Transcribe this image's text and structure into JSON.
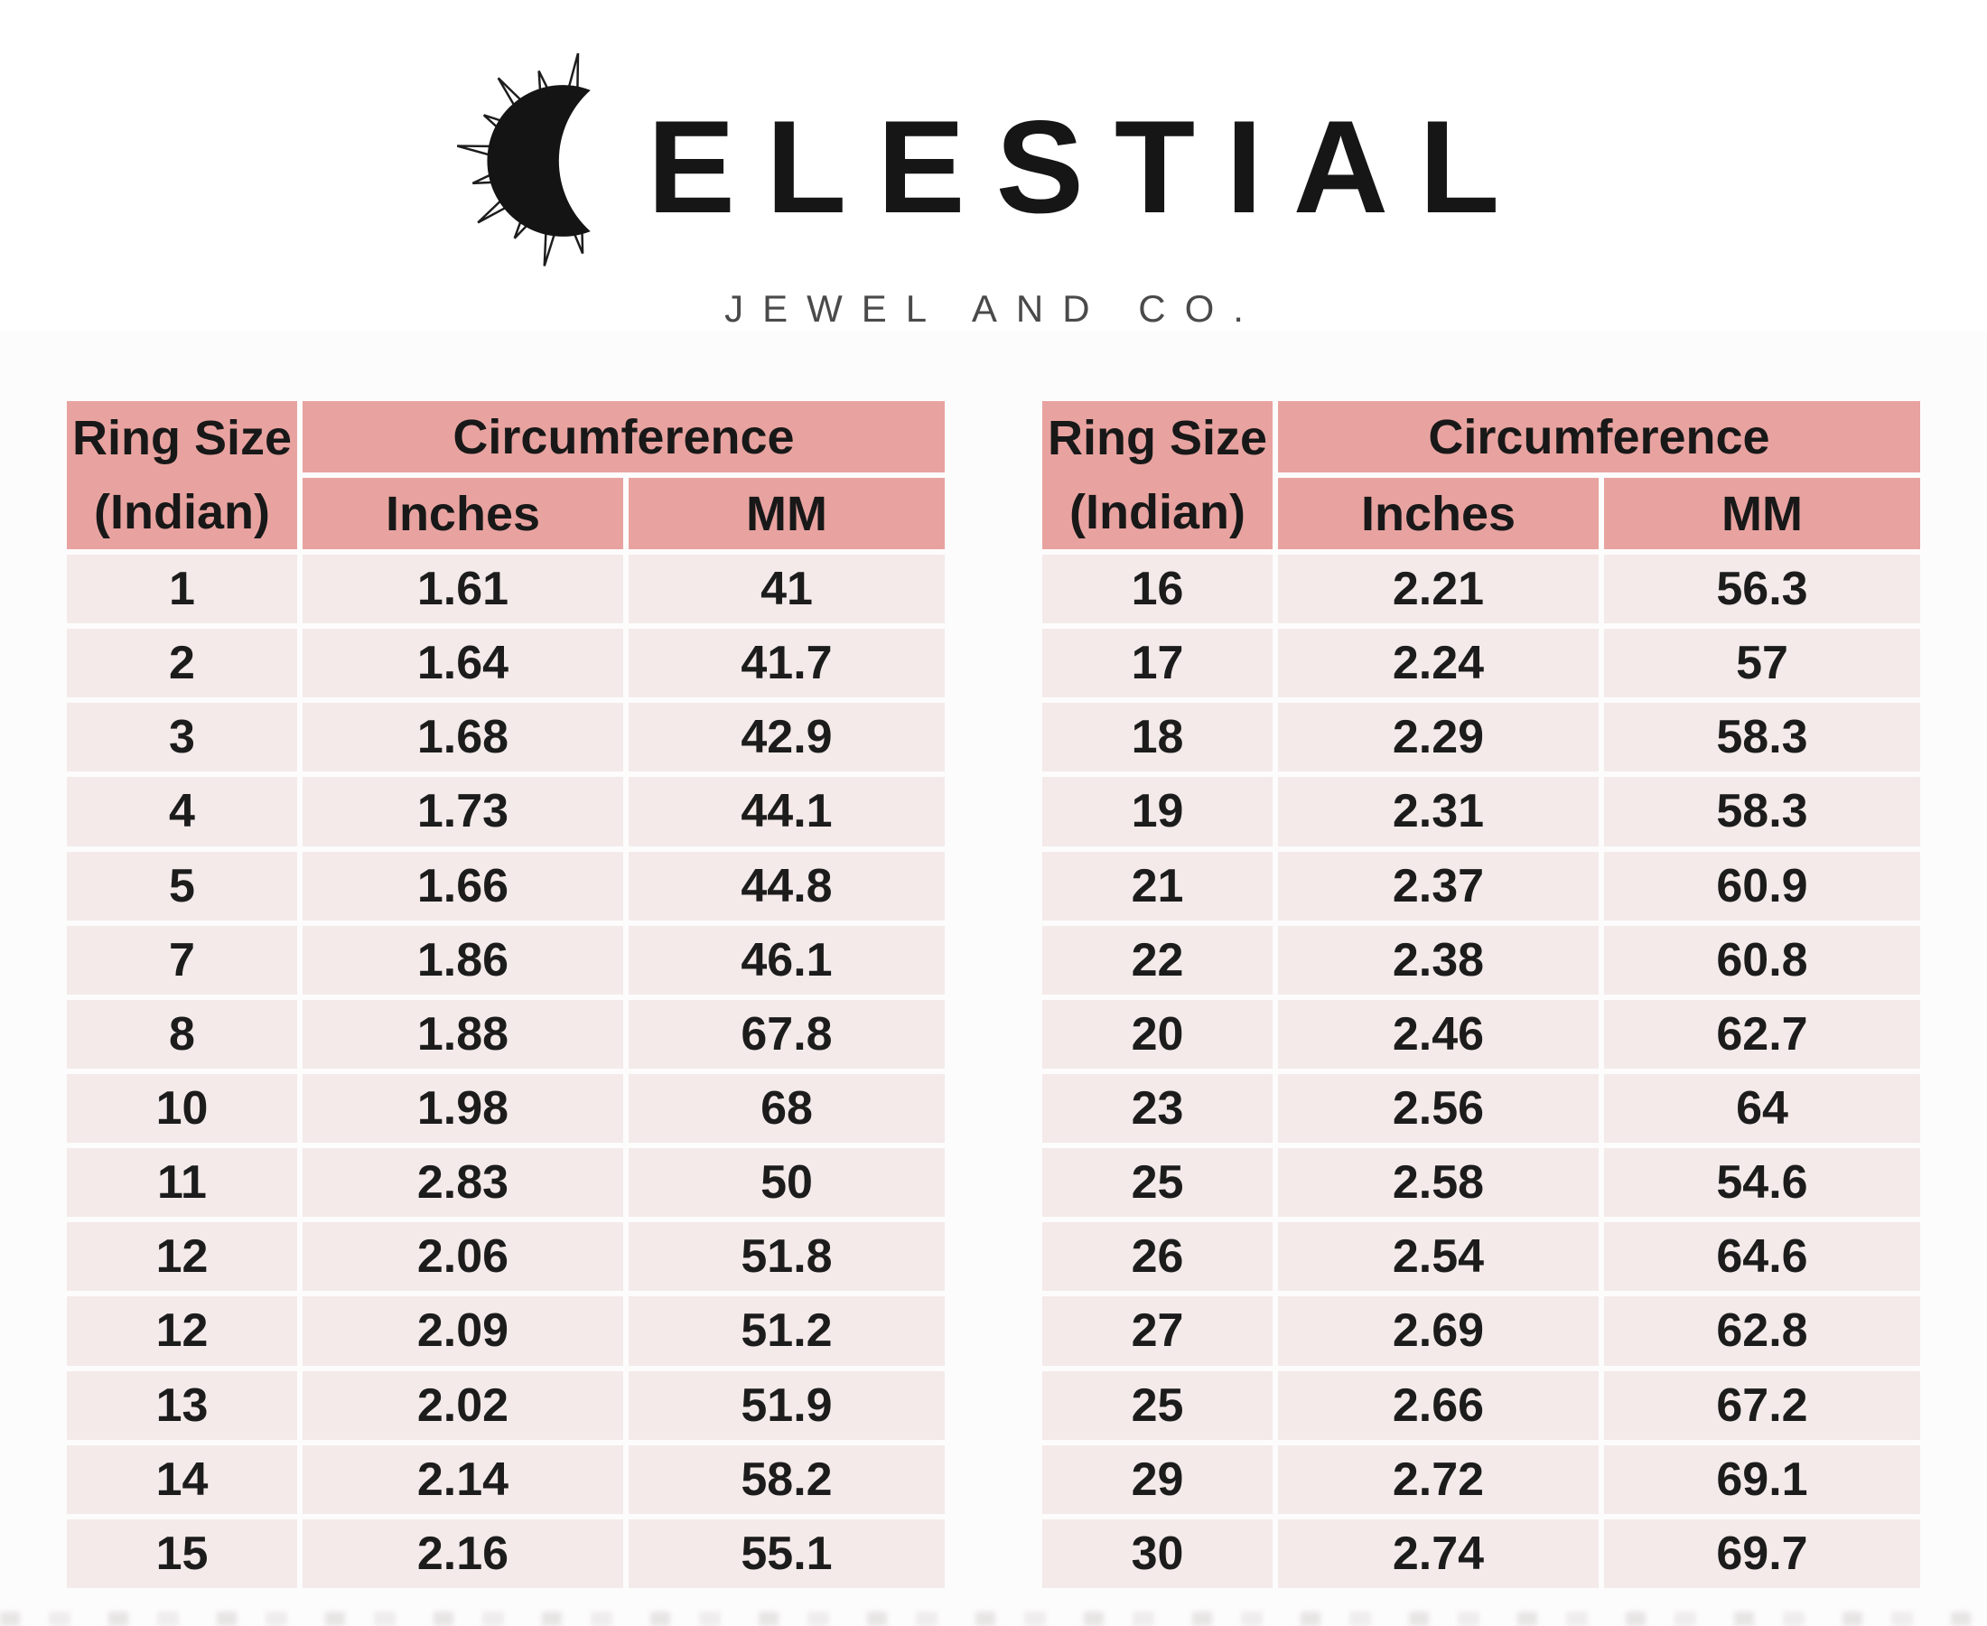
{
  "brand": {
    "name": "CELESTIAL",
    "wordmark_rest": "ELESTIAL",
    "tagline": "JEWEL AND CO.",
    "icon": "sun-crescent-icon"
  },
  "table_header": {
    "col_ring_size_line1": "Ring Size",
    "col_ring_size_line2": "(Indian)",
    "col_group": "Circumference",
    "col_inches": "Inches",
    "col_mm": "MM"
  },
  "colors": {
    "header_bg": "#e8a3a0",
    "row_bg": "#f3eae9",
    "page_bg": "#fdfcfc",
    "text_color": "#1c1c1c",
    "tagline_color": "#4a4a4a"
  },
  "chart_data": {
    "type": "table",
    "title": "Celestial Jewel and Co. — Ring Size Chart",
    "columns": [
      "Ring Size (Indian)",
      "Circumference Inches",
      "Circumference MM"
    ],
    "tables": [
      {
        "position": "left",
        "rows": [
          [
            "1",
            "1.61",
            "41"
          ],
          [
            "2",
            "1.64",
            "41.7"
          ],
          [
            "3",
            "1.68",
            "42.9"
          ],
          [
            "4",
            "1.73",
            "44.1"
          ],
          [
            "5",
            "1.66",
            "44.8"
          ],
          [
            "7",
            "1.86",
            "46.1"
          ],
          [
            "8",
            "1.88",
            "67.8"
          ],
          [
            "10",
            "1.98",
            "68"
          ],
          [
            "11",
            "2.83",
            "50"
          ],
          [
            "12",
            "2.06",
            "51.8"
          ],
          [
            "12",
            "2.09",
            "51.2"
          ],
          [
            "13",
            "2.02",
            "51.9"
          ],
          [
            "14",
            "2.14",
            "58.2"
          ],
          [
            "15",
            "2.16",
            "55.1"
          ]
        ]
      },
      {
        "position": "right",
        "rows": [
          [
            "16",
            "2.21",
            "56.3"
          ],
          [
            "17",
            "2.24",
            "57"
          ],
          [
            "18",
            "2.29",
            "58.3"
          ],
          [
            "19",
            "2.31",
            "58.3"
          ],
          [
            "21",
            "2.37",
            "60.9"
          ],
          [
            "22",
            "2.38",
            "60.8"
          ],
          [
            "20",
            "2.46",
            "62.7"
          ],
          [
            "23",
            "2.56",
            "64"
          ],
          [
            "25",
            "2.58",
            "54.6"
          ],
          [
            "26",
            "2.54",
            "64.6"
          ],
          [
            "27",
            "2.69",
            "62.8"
          ],
          [
            "25",
            "2.66",
            "67.2"
          ],
          [
            "29",
            "2.72",
            "69.1"
          ],
          [
            "30",
            "2.74",
            "69.7"
          ]
        ]
      }
    ]
  }
}
